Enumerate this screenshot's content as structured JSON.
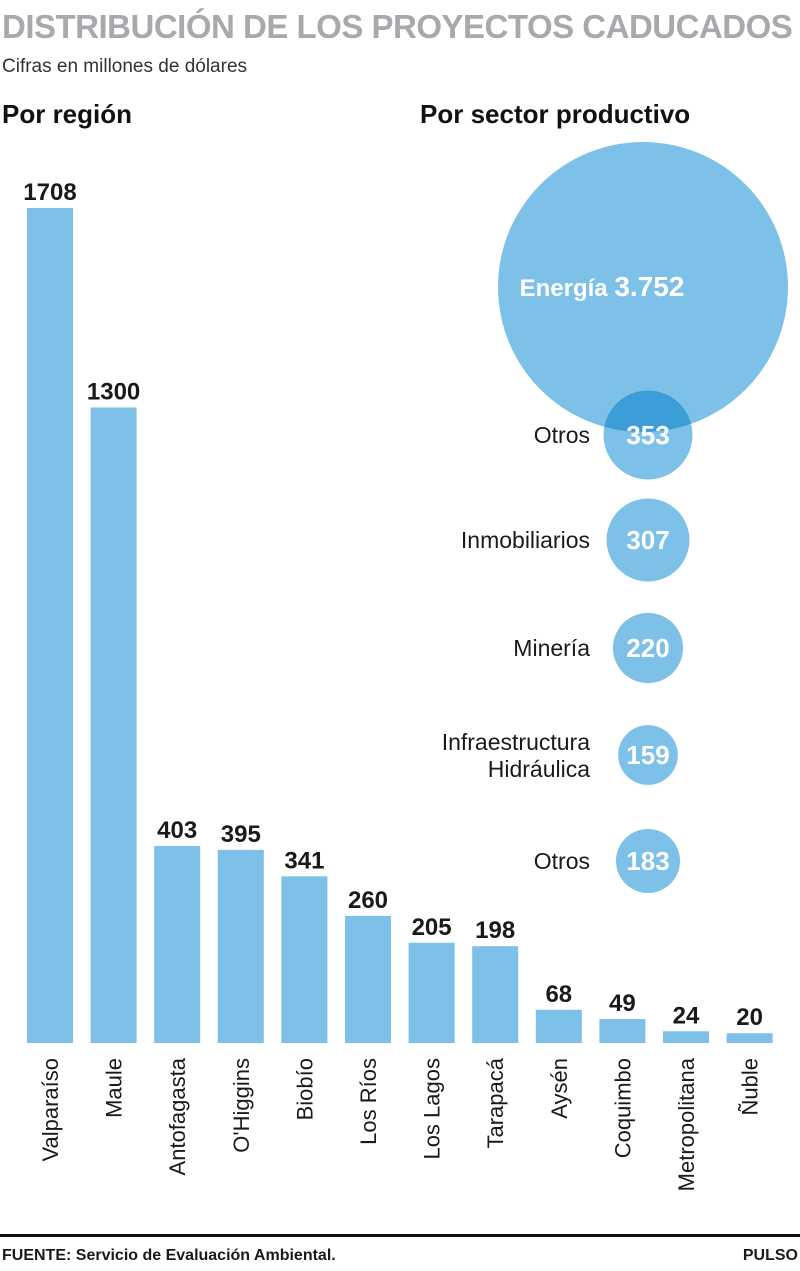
{
  "header": {
    "title": "DISTRIBUCIÓN DE LOS PROYECTOS CADUCADOS",
    "subtitle": "Cifras en millones de dólares"
  },
  "sections": {
    "left": "Por región",
    "right": "Por sector productivo"
  },
  "colors": {
    "bar": "#7dc0e8",
    "bubble": "#7dc0e8",
    "bubble_overlap": "#3d9dd8",
    "title": "#a7a9ac"
  },
  "chart_data": [
    {
      "type": "bar",
      "title": "Por región",
      "categories": [
        "Valparaíso",
        "Maule",
        "Antofagasta",
        "O'Higgins",
        "Biobío",
        "Los Ríos",
        "Los Lagos",
        "Tarapacá",
        "Aysén",
        "Coquimbo",
        "Metropolitana",
        "Ñuble"
      ],
      "values": [
        1708,
        1300,
        403,
        395,
        341,
        260,
        205,
        198,
        68,
        49,
        24,
        20
      ],
      "value_labels": [
        "1708",
        "1300",
        "403",
        "395",
        "341",
        "260",
        "205",
        "198",
        "68",
        "49",
        "24",
        "20"
      ],
      "ylim": [
        0,
        1708
      ]
    },
    {
      "type": "bubble",
      "title": "Por sector productivo",
      "items": [
        {
          "label": "Energía",
          "value": 3752,
          "value_label": "3.752"
        },
        {
          "label": "Otros",
          "value": 353,
          "value_label": "353"
        },
        {
          "label": "Inmobiliarios",
          "value": 307,
          "value_label": "307"
        },
        {
          "label": "Minería",
          "value": 220,
          "value_label": "220"
        },
        {
          "label": "Infraestructura Hidráulica",
          "value": 159,
          "value_label": "159",
          "label_lines": [
            "Infraestructura",
            "Hidráulica"
          ]
        },
        {
          "label": "Otros",
          "value": 183,
          "value_label": "183"
        }
      ]
    }
  ],
  "footer": {
    "source": "FUENTE: Servicio de Evaluación Ambiental.",
    "brand": "PULSO"
  }
}
